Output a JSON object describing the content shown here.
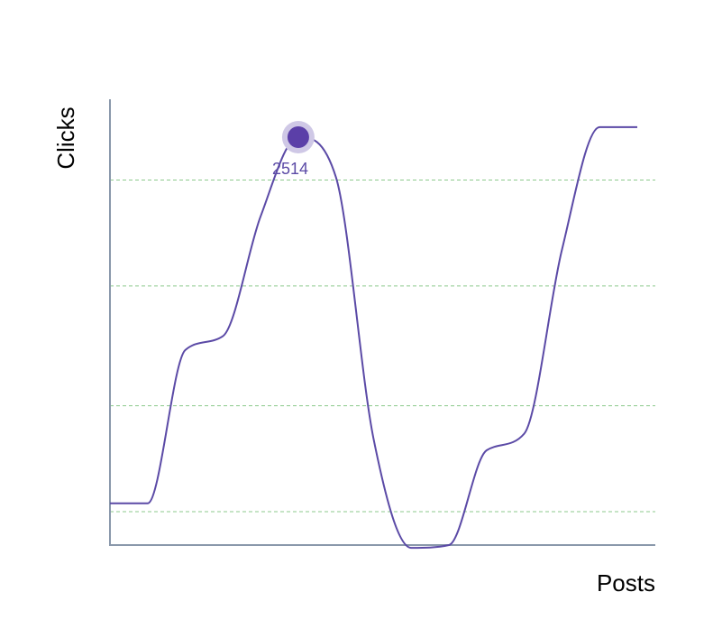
{
  "chart_data": {
    "type": "line",
    "xlabel": "Posts",
    "ylabel": "Clicks",
    "x": [
      0,
      1,
      2,
      3,
      4,
      5,
      6,
      7,
      8,
      9,
      10,
      11,
      12,
      13,
      14
    ],
    "series": [
      {
        "values": [
          1200,
          1200,
          1750,
          1800,
          2230,
          2514,
          2370,
          1430,
          1040,
          1050,
          1390,
          1450,
          2110,
          2550,
          2550
        ]
      }
    ],
    "highlight": {
      "x": 5,
      "value": 2514,
      "label": "2514"
    },
    "ylim": [
      1050,
      2650
    ],
    "grid": true,
    "gridlines": [
      1170,
      1550,
      1980,
      2360
    ],
    "colors": {
      "line": "#5b4aa6",
      "marker": "#5b3fa8",
      "marker_halo": "#cfc8e6",
      "grid": "#8cc98c",
      "axis": "#8a98ab",
      "annotation": "#5b4aa6"
    }
  }
}
